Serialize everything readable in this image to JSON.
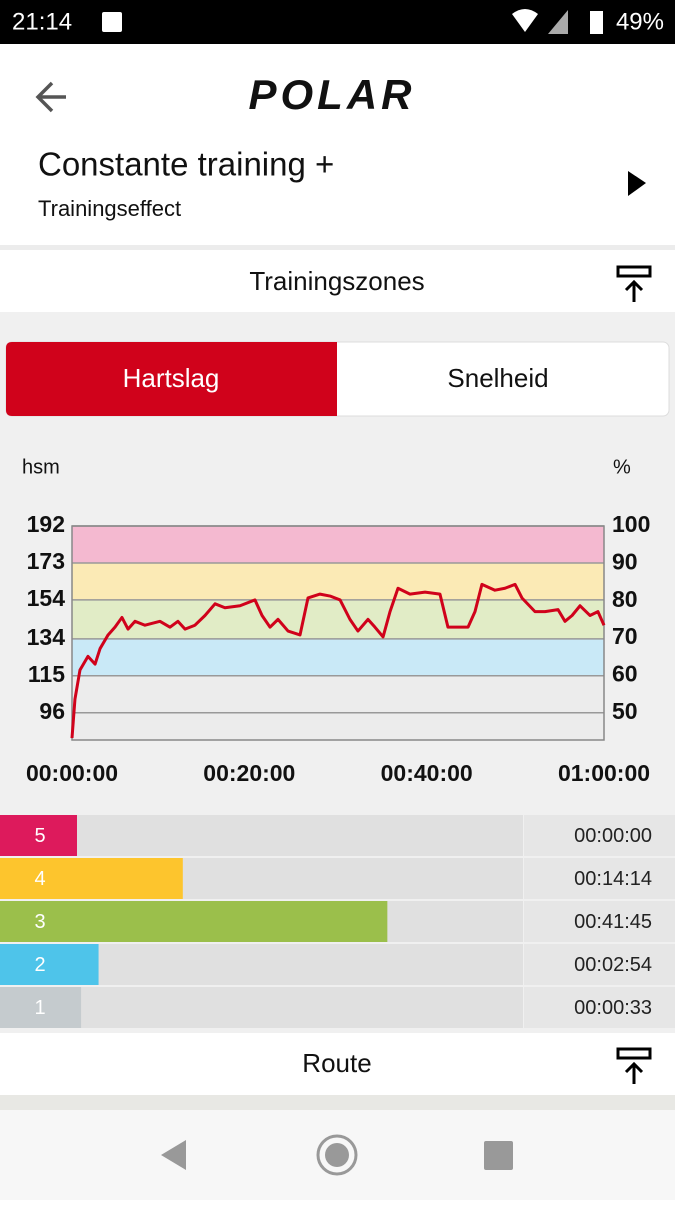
{
  "status_bar": {
    "time": "21:14",
    "battery": "49%"
  },
  "header": {
    "logo": "POLAR",
    "title": "Constante training +",
    "subtitle": "Trainingseffect"
  },
  "sections": [
    "Trainingszones",
    "Route"
  ],
  "tabs": [
    "Hartslag",
    "Snelheid"
  ],
  "chart_data": {
    "type": "line",
    "y_label": "hsm",
    "y2_label": "%",
    "x": [
      0,
      20,
      54,
      108,
      156,
      190,
      244,
      291,
      338,
      379,
      426,
      494,
      595,
      663,
      717,
      765,
      832,
      900,
      968,
      1035,
      1137,
      1238,
      1286,
      1340,
      1394,
      1462,
      1543,
      1597,
      1678,
      1746,
      1814,
      1881,
      1935,
      2003,
      2050,
      2105,
      2152,
      2206,
      2287,
      2389,
      2490,
      2544,
      2592,
      2680,
      2727,
      2774,
      2862,
      2930,
      2998,
      3045,
      3133,
      3201,
      3289,
      3336,
      3384,
      3438,
      3505,
      3559,
      3600
    ],
    "series": [
      {
        "color": "#d0021b",
        "values": [
          83,
          103,
          118,
          125,
          121,
          129,
          136,
          140,
          145,
          139,
          143,
          141,
          143,
          140,
          143,
          139,
          141,
          146,
          152,
          150,
          151,
          154,
          146,
          140,
          144,
          138,
          136,
          155,
          157,
          156,
          154,
          144,
          138,
          144,
          140,
          135,
          148,
          160,
          157,
          158,
          157,
          140,
          140,
          140,
          148,
          162,
          159,
          160,
          162,
          155,
          148,
          148,
          149,
          143,
          146,
          151,
          146,
          148,
          141
        ]
      }
    ],
    "xlim": [
      0,
      3600
    ],
    "xticks": [
      {
        "value": 0,
        "label": "00:00:00"
      },
      {
        "value": 1200,
        "label": "00:20:00"
      },
      {
        "value": 2400,
        "label": "00:40:00"
      },
      {
        "value": 3600,
        "label": "01:00:00"
      }
    ],
    "ylim": [
      82,
      192
    ],
    "yticks": [
      96,
      115,
      134,
      154,
      173,
      192
    ],
    "y2lim": [
      42.7,
      100
    ],
    "y2ticks": [
      50,
      60,
      70,
      80,
      90,
      100
    ],
    "grid": true,
    "zones": [
      {
        "from": 115,
        "to": 134,
        "color": "#c9e9f7"
      },
      {
        "from": 134,
        "to": 154,
        "color": "#e1ecc6"
      },
      {
        "from": 154,
        "to": 173,
        "color": "#fbeab5"
      },
      {
        "from": 173,
        "to": 192,
        "color": "#f4b9d0"
      }
    ]
  },
  "zones": {
    "labels": [
      "5",
      "4",
      "3",
      "2",
      "1"
    ],
    "values": [
      0,
      854,
      2505,
      174,
      33
    ],
    "value_labels": [
      "00:00:00",
      "00:14:14",
      "00:41:45",
      "00:02:54",
      "00:00:33"
    ],
    "colors": [
      "#dd1a5c",
      "#fdc52d",
      "#9bbf4b",
      "#4ec4ea",
      "#c5cbce"
    ],
    "xlim": [
      0,
      3600
    ]
  }
}
